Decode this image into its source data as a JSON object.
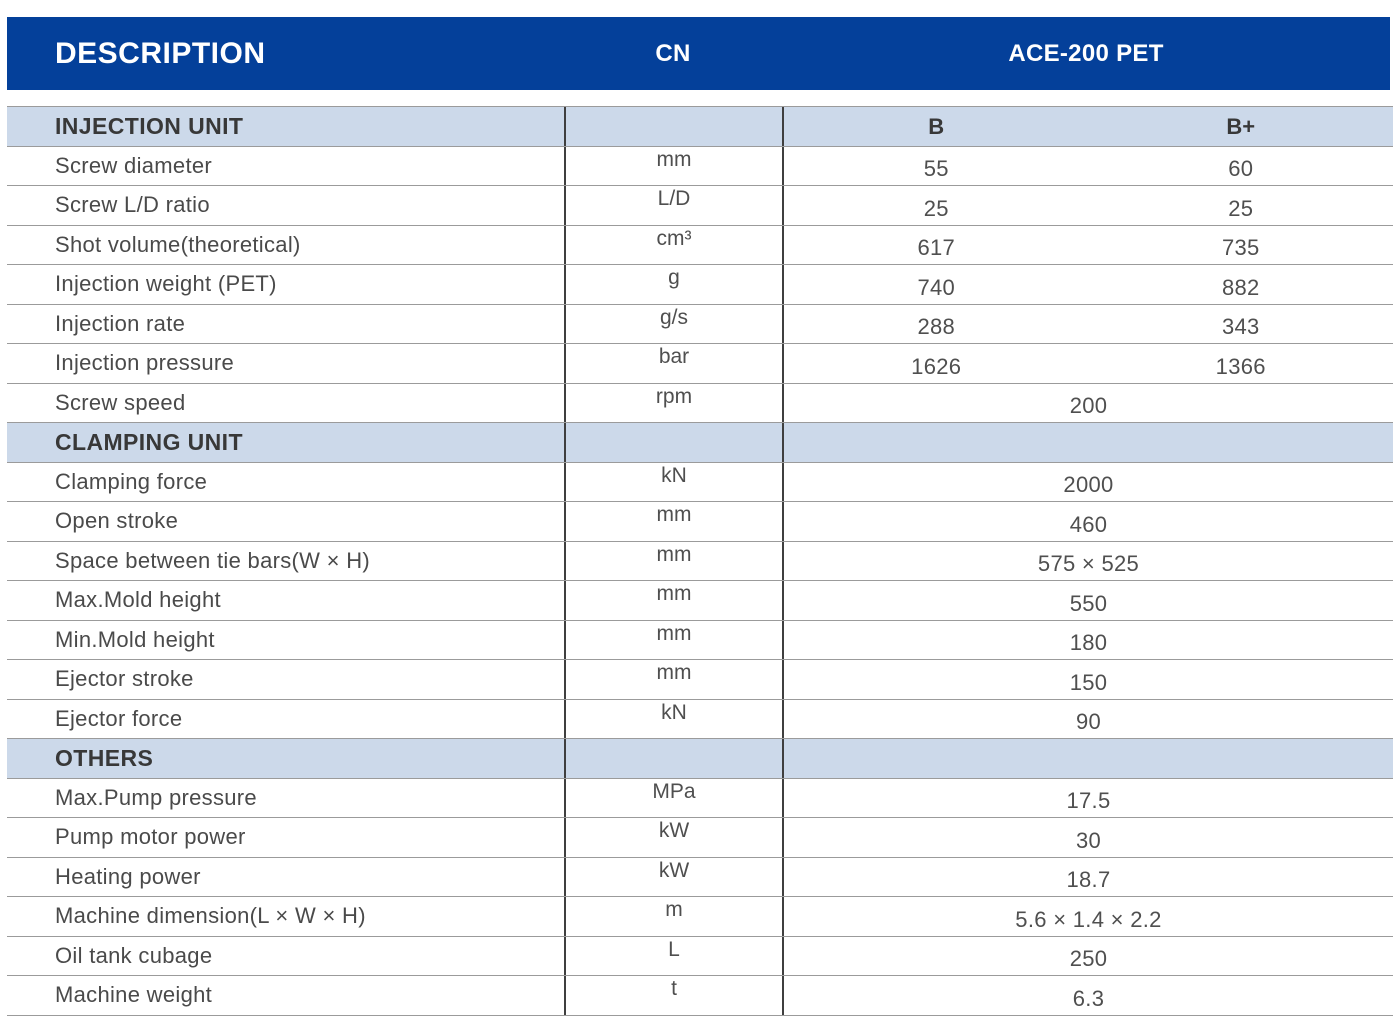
{
  "colors": {
    "header_bg": "#04409a",
    "section_bg": "#ccd9ea",
    "row_line": "#9b9b9b",
    "divider": "#3f3f3f",
    "header_text": "#ffffff"
  },
  "header": {
    "description": "DESCRIPTION",
    "cn": "CN",
    "model": "ACE-200 PET"
  },
  "columns": {
    "b": "B",
    "b_plus": "B+"
  },
  "sections": [
    {
      "title": "INJECTION UNIT",
      "rows": [
        {
          "label": "Screw diameter",
          "unit": "mm",
          "b": "55",
          "bplus": "60"
        },
        {
          "label": "Screw L/D ratio",
          "unit": "L/D",
          "b": "25",
          "bplus": "25"
        },
        {
          "label": "Shot volume(theoretical)",
          "unit": "cm³",
          "b": "617",
          "bplus": "735"
        },
        {
          "label": "Injection weight (PET)",
          "unit": "g",
          "b": "740",
          "bplus": "882"
        },
        {
          "label": "Injection rate",
          "unit": "g/s",
          "b": "288",
          "bplus": "343"
        },
        {
          "label": "Injection pressure",
          "unit": "bar",
          "b": "1626",
          "bplus": "1366"
        },
        {
          "label": "Screw speed",
          "unit": "rpm",
          "span": "200"
        }
      ]
    },
    {
      "title": "CLAMPING UNIT",
      "rows": [
        {
          "label": "Clamping force",
          "unit": "kN",
          "span": "2000"
        },
        {
          "label": "Open stroke",
          "unit": "mm",
          "span": "460"
        },
        {
          "label": "Space between tie bars(W × H)",
          "unit": "mm",
          "span": "575 × 525"
        },
        {
          "label": "Max.Mold height",
          "unit": "mm",
          "span": "550"
        },
        {
          "label": "Min.Mold height",
          "unit": "mm",
          "span": "180"
        },
        {
          "label": "Ejector stroke",
          "unit": "mm",
          "span": "150"
        },
        {
          "label": "Ejector force",
          "unit": "kN",
          "span": "90"
        }
      ]
    },
    {
      "title": "OTHERS",
      "rows": [
        {
          "label": "Max.Pump pressure",
          "unit": "MPa",
          "span": "17.5"
        },
        {
          "label": "Pump motor power",
          "unit": "kW",
          "span": "30"
        },
        {
          "label": "Heating power",
          "unit": "kW",
          "span": "18.7"
        },
        {
          "label": "Machine dimension(L × W × H)",
          "unit": "m",
          "span": "5.6 × 1.4 × 2.2"
        },
        {
          "label": "Oil tank cubage",
          "unit": "L",
          "span": "250"
        },
        {
          "label": "Machine weight",
          "unit": "t",
          "span": "6.3"
        }
      ]
    }
  ]
}
